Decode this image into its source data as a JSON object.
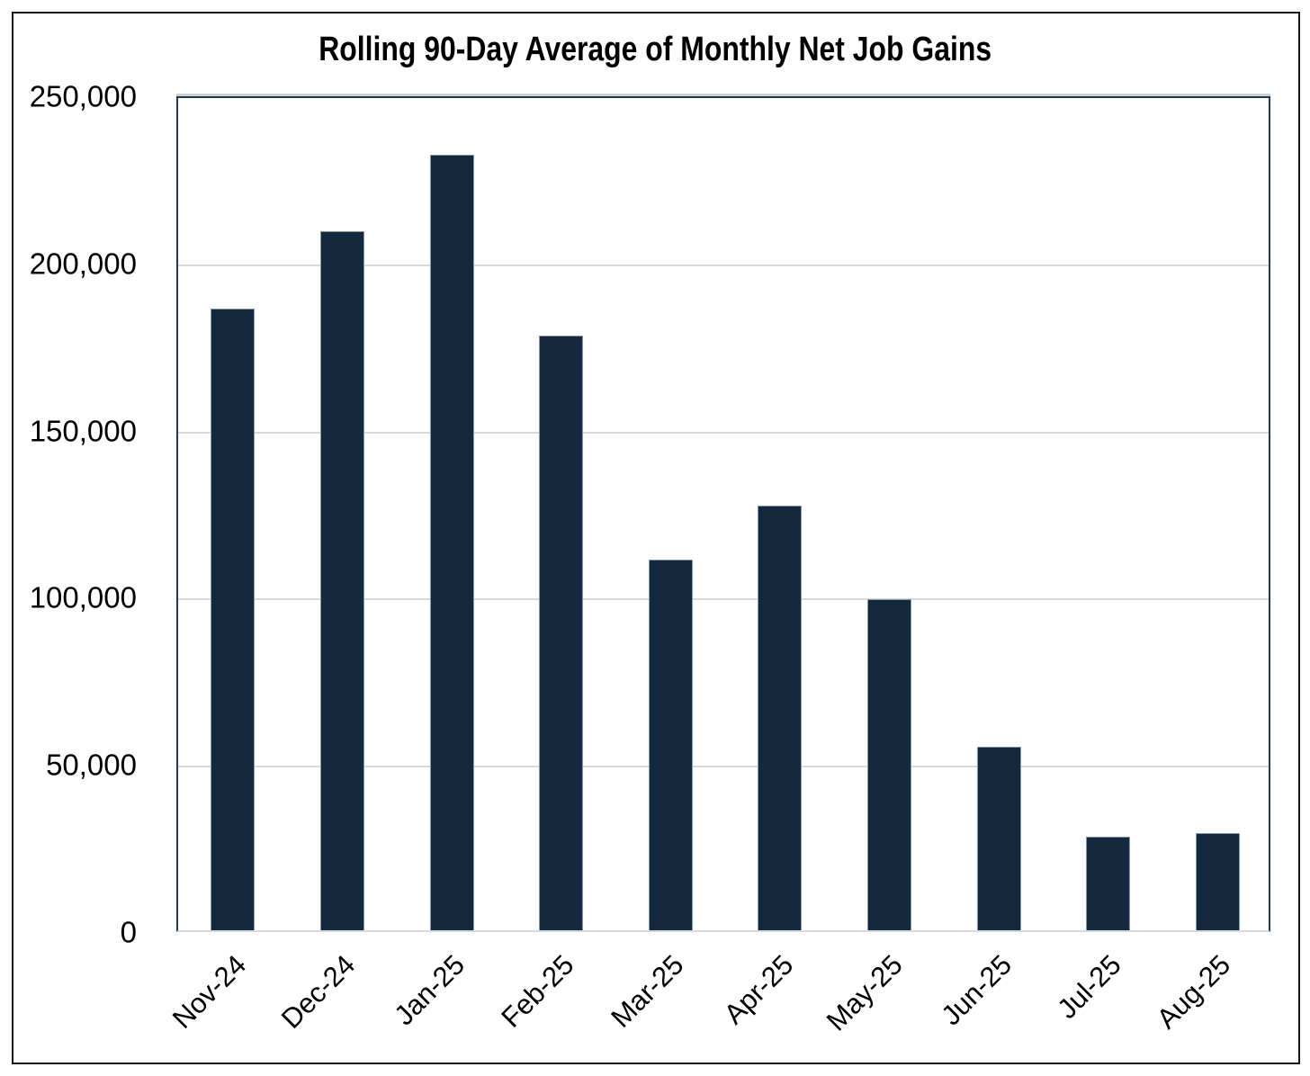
{
  "chart_data": {
    "type": "bar",
    "title": "Rolling 90-Day Average of Monthly Net Job Gains",
    "categories": [
      "Nov-24",
      "Dec-24",
      "Jan-25",
      "Feb-25",
      "Mar-25",
      "Apr-25",
      "May-25",
      "Jun-25",
      "Jul-25",
      "Aug-25"
    ],
    "values": [
      186000,
      209000,
      232000,
      178000,
      111000,
      127000,
      99000,
      55000,
      28000,
      29000
    ],
    "xlabel": "",
    "ylabel": "",
    "ylim": [
      0,
      250000
    ],
    "ytick_interval": 50000,
    "yticks": [
      {
        "value": 0,
        "label": "0"
      },
      {
        "value": 50000,
        "label": "50,000"
      },
      {
        "value": 100000,
        "label": "100,000"
      },
      {
        "value": 150000,
        "label": "150,000"
      },
      {
        "value": 200000,
        "label": "200,000"
      },
      {
        "value": 250000,
        "label": "250,000"
      }
    ],
    "grid": true,
    "legend": "none",
    "colors": {
      "bar_fill": "#14283E",
      "bar_border": "#8496B0",
      "gridline": "#D9D9D9",
      "plot_border": "#26374B",
      "axis_bottom_line": "#D9D9D9",
      "figure_border": "#161616",
      "text": "#000000",
      "background": "#FFFFFF"
    }
  }
}
